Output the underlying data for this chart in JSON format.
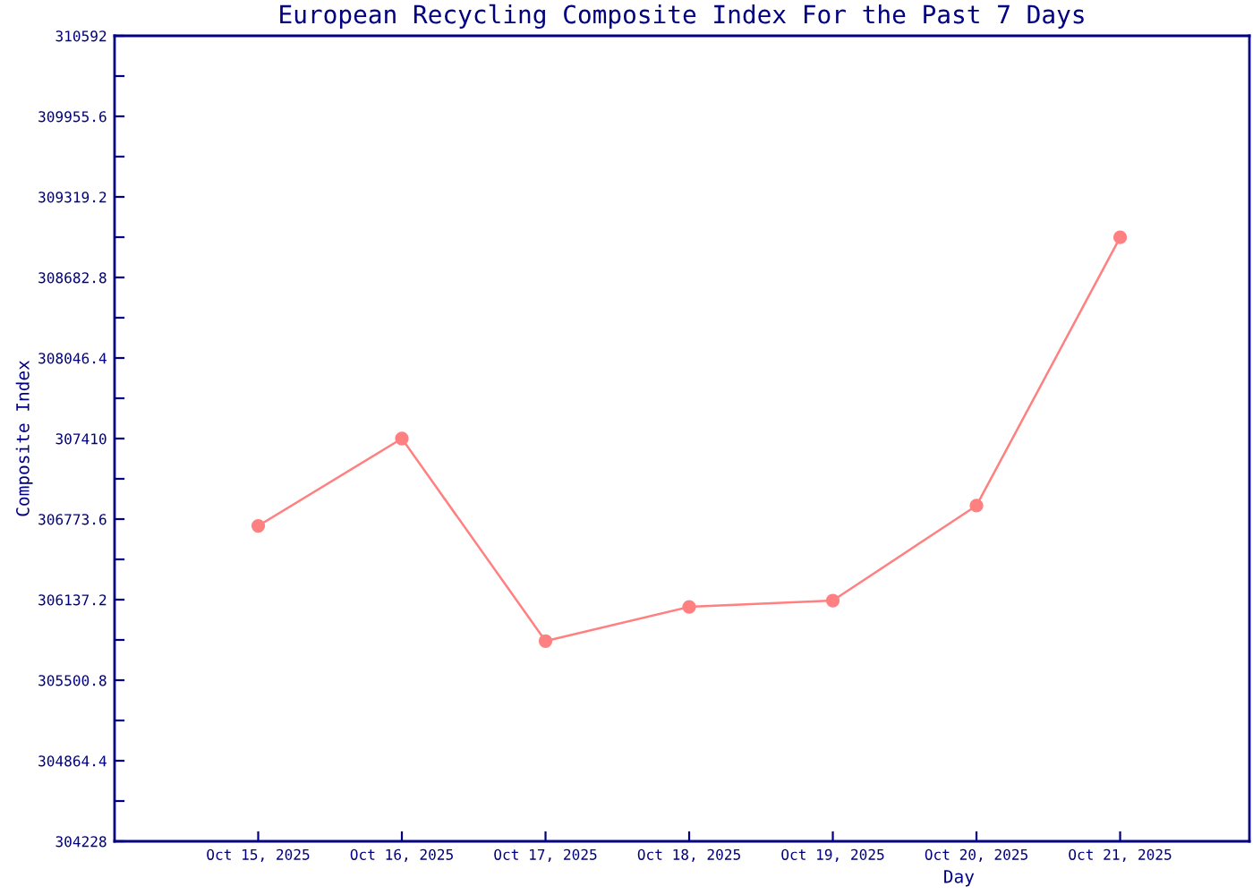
{
  "chart_data": {
    "type": "line",
    "title": "European Recycling Composite Index For the Past 7 Days",
    "xlabel": "Day",
    "ylabel": "Composite Index",
    "categories": [
      "Oct 15, 2025",
      "Oct 16, 2025",
      "Oct 17, 2025",
      "Oct 18, 2025",
      "Oct 19, 2025",
      "Oct 20, 2025",
      "Oct 21, 2025"
    ],
    "series": [
      {
        "color": "#ff8080",
        "values": [
          306720,
          307410,
          305810,
          306080,
          306130,
          306880,
          309000
        ]
      }
    ],
    "ylim": [
      304228,
      310592
    ],
    "yticks": [
      304228,
      {
        "value": 304546.2,
        "label": null
      },
      304864.4,
      {
        "value": 305182.6,
        "label": null
      },
      305500.8,
      {
        "value": 305819.0,
        "label": null
      },
      306137.2,
      {
        "value": 306455.4,
        "label": null
      },
      306773.6,
      {
        "value": 307091.8,
        "label": null
      },
      307410,
      {
        "value": 307728.2,
        "label": null
      },
      308046.4,
      {
        "value": 308364.6,
        "label": null
      },
      308682.8,
      {
        "value": 309001.0,
        "label": null
      },
      309319.2,
      {
        "value": 309637.4,
        "label": null
      },
      309955.6,
      {
        "value": 310273.8,
        "label": null
      },
      310592
    ],
    "marker": "circle",
    "line_style": "solid",
    "grid": false
  }
}
